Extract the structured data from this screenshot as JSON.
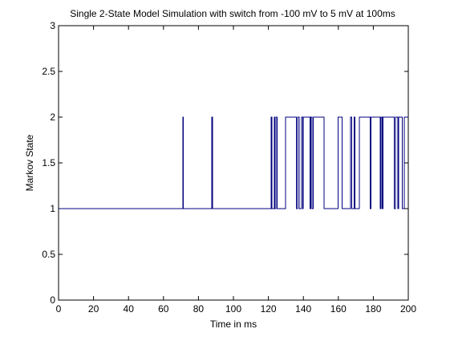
{
  "chart_data": {
    "type": "line",
    "title": "Single 2-State Model Simulation with switch from -100 mV to 5 mV at 100ms",
    "xlabel": "Time in ms",
    "ylabel": "Markov State",
    "xlim": [
      0,
      200
    ],
    "ylim": [
      0,
      3
    ],
    "xticks": [
      "0",
      "20",
      "40",
      "60",
      "80",
      "100",
      "120",
      "140",
      "160",
      "180",
      "200"
    ],
    "yticks": [
      "0",
      "0.5",
      "1",
      "1.5",
      "2",
      "2.5",
      "3"
    ],
    "grid": false,
    "series": [
      {
        "color": "#00007f",
        "x": [
          0,
          71,
          71,
          71.4,
          71.4,
          87.6,
          87.6,
          88,
          88,
          121.6,
          121.6,
          122,
          122,
          123.3,
          123.3,
          123.7,
          123.7,
          124.4,
          124.4,
          124.9,
          124.9,
          129.9,
          129.9,
          136,
          136,
          136.6,
          136.6,
          137.6,
          137.6,
          139.1,
          139.1,
          139.6,
          139.6,
          140,
          140,
          143.9,
          143.9,
          144.3,
          144.3,
          145,
          145,
          145.6,
          145.6,
          151.9,
          151.9,
          159.8,
          159.8,
          162.1,
          162.1,
          167,
          167,
          167.6,
          167.6,
          169,
          169,
          169.6,
          169.6,
          172,
          172,
          178.1,
          178.1,
          178.6,
          178.6,
          183.9,
          183.9,
          184.3,
          184.3,
          185,
          185,
          185.6,
          185.6,
          192,
          192,
          192.6,
          192.6,
          194,
          194,
          194.6,
          194.6,
          196.6,
          196.6,
          197.6,
          197.6,
          200
        ],
        "y": [
          1,
          1,
          2,
          2,
          1,
          1,
          2,
          2,
          1,
          1,
          2,
          2,
          1,
          1,
          2,
          2,
          1,
          1,
          2,
          2,
          1,
          1,
          2,
          2,
          1,
          1,
          2,
          2,
          1,
          1,
          2,
          2,
          1,
          1,
          2,
          2,
          1,
          1,
          2,
          2,
          1,
          1,
          2,
          2,
          1,
          1,
          2,
          2,
          1,
          1,
          2,
          2,
          1,
          1,
          2,
          2,
          1,
          1,
          2,
          2,
          1,
          1,
          2,
          2,
          1,
          1,
          2,
          2,
          1,
          1,
          2,
          2,
          1,
          1,
          2,
          2,
          1,
          1,
          2,
          2,
          1,
          1,
          2,
          2
        ]
      }
    ]
  }
}
